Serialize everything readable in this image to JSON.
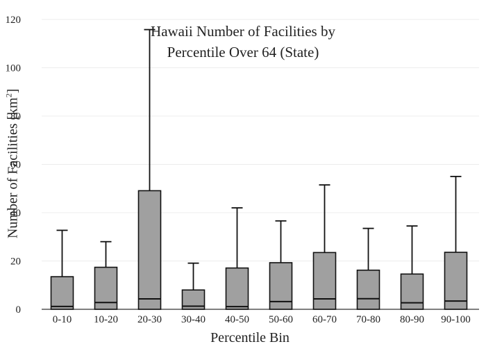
{
  "chart_data": {
    "type": "box",
    "title": "Hawaii Number of Facilities by Percentile Over 64 (State)",
    "title_lines": [
      "Hawaii Number of Facilities by",
      "Percentile Over 64 (State)"
    ],
    "xlabel": "Percentile Bin",
    "ylabel_text": "Number of Facilities  [km",
    "ylabel_sup": "2",
    "ylabel_close": "]",
    "ylim": [
      0,
      120
    ],
    "yticks": [
      "0",
      "20",
      "40",
      "60",
      "80",
      "100",
      "120"
    ],
    "grid": true,
    "box_color": "#a0a0a0",
    "categories": [
      "0-10",
      "10-20",
      "20-30",
      "30-40",
      "40-50",
      "50-60",
      "60-70",
      "70-80",
      "80-90",
      "90-100"
    ],
    "boxes": [
      {
        "min": 0,
        "q1": 0,
        "median": 1.2,
        "q3": 13.5,
        "max": 32.7
      },
      {
        "min": 0,
        "q1": 0,
        "median": 2.8,
        "q3": 17.4,
        "max": 28.0
      },
      {
        "min": 0,
        "q1": 0,
        "median": 4.3,
        "q3": 49.1,
        "max": 115.8
      },
      {
        "min": 0,
        "q1": 0,
        "median": 1.3,
        "q3": 8.0,
        "max": 19.1
      },
      {
        "min": 0,
        "q1": 0,
        "median": 1.1,
        "q3": 17.1,
        "max": 42.0
      },
      {
        "min": 0,
        "q1": 0,
        "median": 3.2,
        "q3": 19.3,
        "max": 36.6
      },
      {
        "min": 0,
        "q1": 0,
        "median": 4.3,
        "q3": 23.5,
        "max": 51.5
      },
      {
        "min": 0,
        "q1": 0,
        "median": 4.4,
        "q3": 16.2,
        "max": 33.5
      },
      {
        "min": 0,
        "q1": 0,
        "median": 2.7,
        "q3": 14.6,
        "max": 34.5
      },
      {
        "min": 0,
        "q1": 0,
        "median": 3.4,
        "q3": 23.6,
        "max": 55.0
      }
    ]
  }
}
